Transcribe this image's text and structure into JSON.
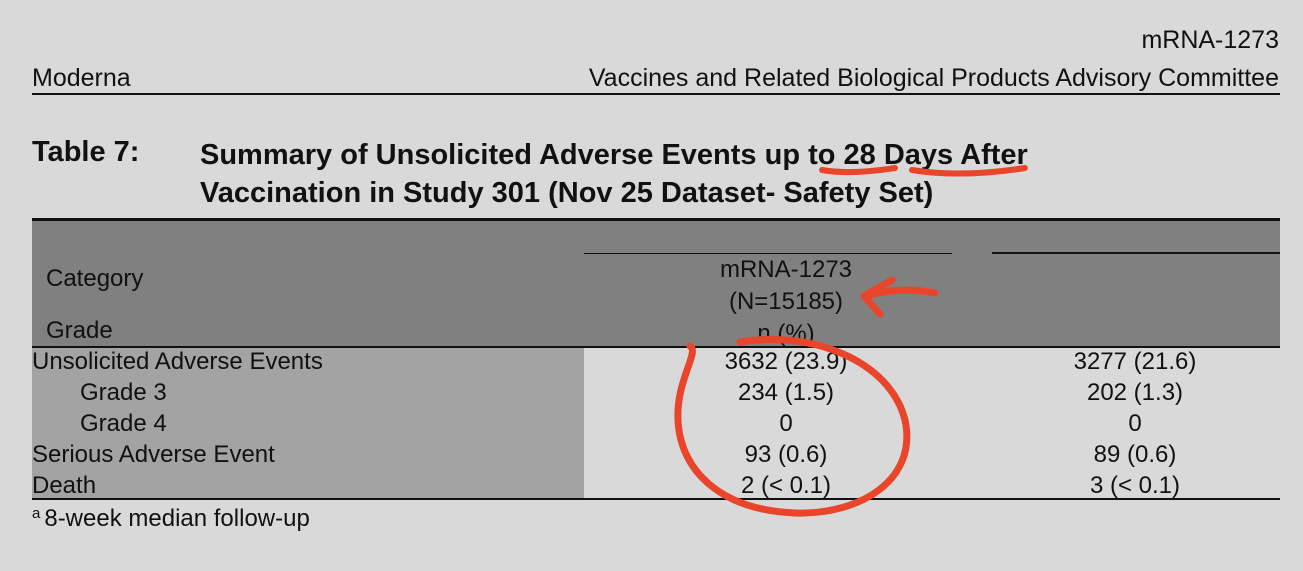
{
  "header": {
    "product": "mRNA-1273",
    "company": "Moderna",
    "committee": "Vaccines and Related Biological Products Advisory Committee"
  },
  "table": {
    "label": "Table 7:",
    "title_line1": "Summary of Unsolicited Adverse Events up to 28 Days After",
    "title_line2": "Vaccination in Study 301 (Nov 25 Dataset- Safety Set)",
    "header": {
      "category": "Category",
      "grade": "Grade",
      "arm1_name": "mRNA-1273",
      "arm1_n": "(N=15185)",
      "arm1_unit": "n (%)"
    },
    "rows": [
      {
        "label": "Unsolicited Adverse Events",
        "col1": "3632 (23.9)",
        "col2": "3277 (21.6)"
      },
      {
        "label": "Grade 3",
        "col1": "234 (1.5)",
        "col2": "202 (1.3)"
      },
      {
        "label": "Grade 4",
        "col1": "0",
        "col2": "0"
      },
      {
        "label": "Serious Adverse Event",
        "col1": "93 (0.6)",
        "col2": "89 (0.6)"
      },
      {
        "label": "Death",
        "col1": "2 (< 0.1)",
        "col2": "3 (< 0.1)"
      }
    ],
    "footnote_marker": "a",
    "footnote": "8-week median follow-up"
  },
  "annotation_color": "#e8452a"
}
